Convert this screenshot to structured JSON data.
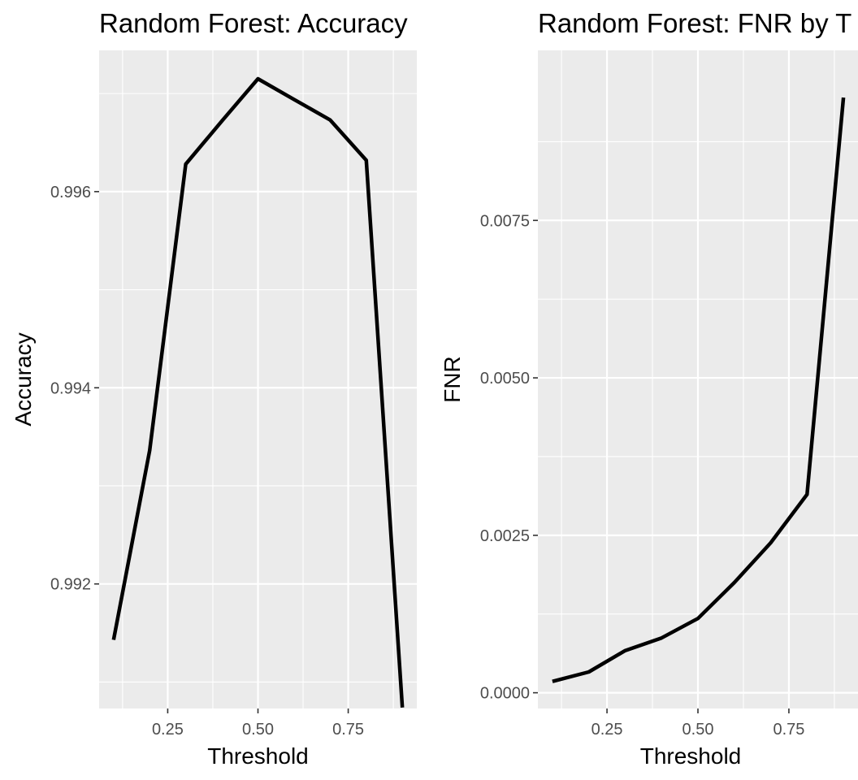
{
  "chart_data": [
    {
      "type": "line",
      "title": "Random Forest: Accuracy",
      "xlabel": "Threshold",
      "ylabel": "Accuracy",
      "xlim": [
        0.06,
        0.94
      ],
      "ylim": [
        0.99073,
        0.99744
      ],
      "x_ticks": [
        0.25,
        0.5,
        0.75
      ],
      "x_tick_labels": [
        "0.25",
        "0.50",
        "0.75"
      ],
      "y_ticks": [
        0.992,
        0.994,
        0.996
      ],
      "y_tick_labels": [
        "0.992",
        "0.994",
        "0.996"
      ],
      "grid": true,
      "series": [
        {
          "color": "#000000",
          "x": [
            0.1,
            0.2,
            0.3,
            0.4,
            0.5,
            0.6,
            0.7,
            0.8,
            0.9
          ],
          "y": [
            0.99143,
            0.99336,
            0.99628,
            0.99672,
            0.99715,
            0.99694,
            0.99673,
            0.99632,
            0.99074
          ]
        }
      ]
    },
    {
      "type": "line",
      "title": "Random Forest: FNR by T",
      "xlabel": "Threshold",
      "ylabel": "FNR",
      "xlim": [
        0.06,
        0.94
      ],
      "ylim": [
        -0.00025,
        0.0102
      ],
      "x_ticks": [
        0.25,
        0.5,
        0.75
      ],
      "x_tick_labels": [
        "0.25",
        "0.50",
        "0.75"
      ],
      "y_ticks": [
        0.0,
        0.0025,
        0.005,
        0.0075
      ],
      "y_tick_labels": [
        "0.0000",
        "0.0025",
        "0.0050",
        "0.0075"
      ],
      "grid": true,
      "series": [
        {
          "color": "#000000",
          "x": [
            0.1,
            0.2,
            0.3,
            0.4,
            0.5,
            0.6,
            0.7,
            0.8,
            0.9
          ],
          "y": [
            0.00018,
            0.00033,
            0.00067,
            0.00087,
            0.00118,
            0.00175,
            0.00238,
            0.00315,
            0.00945
          ]
        }
      ]
    }
  ]
}
